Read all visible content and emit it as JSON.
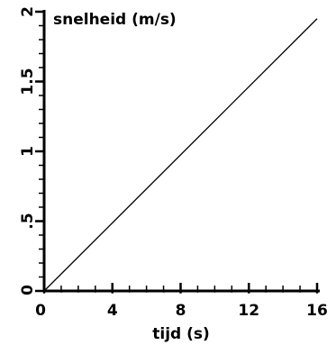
{
  "chart_data": {
    "type": "line",
    "title": "",
    "xlabel": "tijd (s)",
    "ylabel": "snelheid (m/s)",
    "xlim": [
      0,
      16
    ],
    "ylim": [
      0,
      2
    ],
    "grid": false,
    "x_tick_labels": [
      "0",
      "4",
      "8",
      "12",
      "16"
    ],
    "x_tick_values": [
      0,
      4,
      8,
      12,
      16
    ],
    "x_minor_step": 1,
    "y_tick_labels": [
      "0",
      ".5",
      "1",
      "1.5",
      "2"
    ],
    "y_tick_values": [
      0,
      0.5,
      1,
      1.5,
      2
    ],
    "y_minor_step": 0.1,
    "series": [
      {
        "x": [
          0,
          16
        ],
        "y": [
          0,
          1.95
        ]
      }
    ]
  }
}
